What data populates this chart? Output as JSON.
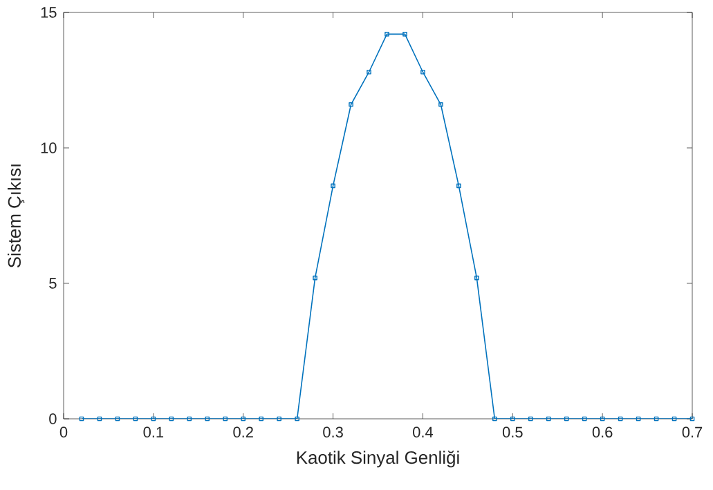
{
  "chart_data": {
    "type": "line",
    "xlabel": "Kaotik Sinyal Genliği",
    "ylabel": "Sistem Çıkısı",
    "x": [
      0.02,
      0.04,
      0.06,
      0.08,
      0.1,
      0.12,
      0.14,
      0.16,
      0.18,
      0.2,
      0.22,
      0.24,
      0.26,
      0.28,
      0.3,
      0.32,
      0.34,
      0.36,
      0.38,
      0.4,
      0.42,
      0.44,
      0.46,
      0.48,
      0.5,
      0.52,
      0.54,
      0.56,
      0.58,
      0.6,
      0.62,
      0.64,
      0.66,
      0.68,
      0.7
    ],
    "series": [
      {
        "color": "#0072bd",
        "values": [
          0,
          0,
          0,
          0,
          0,
          0,
          0,
          0,
          0,
          0,
          0,
          0,
          0,
          5.2,
          8.6,
          11.6,
          12.8,
          14.2,
          14.2,
          12.8,
          11.6,
          8.6,
          5.2,
          0,
          0,
          0,
          0,
          0,
          0,
          0,
          0,
          0,
          0,
          0,
          0
        ]
      }
    ],
    "xlim": [
      0,
      0.7
    ],
    "ylim": [
      0,
      15
    ],
    "xticks": [
      0,
      0.1,
      0.2,
      0.3,
      0.4,
      0.5,
      0.6,
      0.7
    ],
    "yticks": [
      0,
      5,
      10,
      15
    ],
    "grid": false,
    "marker": "square",
    "line_style": "solid"
  }
}
